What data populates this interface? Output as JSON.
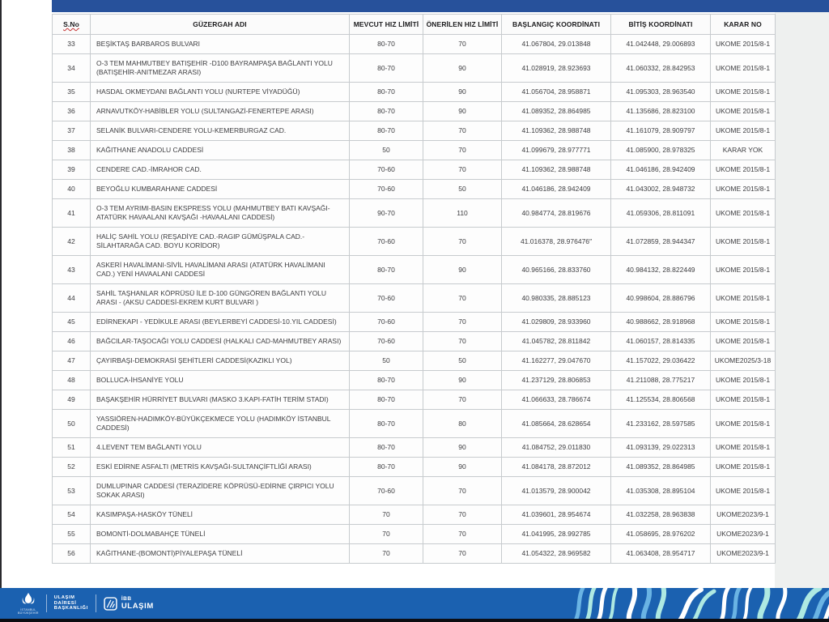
{
  "table": {
    "headers": [
      "S.No",
      "GÜZERGAH ADI",
      "MEVCUT HIZ LİMİTİ",
      "ÖNERİLEN HIZ LİMİTİ",
      "BAŞLANGIÇ KOORDİNATI",
      "BİTİŞ KOORDİNATI",
      "KARAR NO"
    ],
    "rows": [
      {
        "no": "33",
        "route": "BEŞİKTAŞ BARBAROS BULVARI",
        "current": "80-70",
        "proposed": "70",
        "start": "41.067804, 29.013848",
        "end": "41.042448, 29.006893",
        "decision": "UKOME 2015/8-1"
      },
      {
        "no": "34",
        "route": "O-3 TEM MAHMUTBEY BATIŞEHİR -D100 BAYRAMPAŞA BAĞLANTI YOLU (BATIŞEHİR-ANITMEZAR ARASI)",
        "current": "80-70",
        "proposed": "90",
        "start": "41.028919, 28.923693",
        "end": "41.060332, 28.842953",
        "decision": "UKOME 2015/8-1"
      },
      {
        "no": "35",
        "route": "HASDAL OKMEYDANI BAĞLANTI YOLU (NURTEPE VİYADÜĞÜ)",
        "current": "80-70",
        "proposed": "90",
        "start": "41.056704, 28.958871",
        "end": "41.095303, 28.963540",
        "decision": "UKOME 2015/8-1"
      },
      {
        "no": "36",
        "route": "ARNAVUTKÖY-HABİBLER YOLU (SULTANGAZİ-FENERTEPE ARASI)",
        "current": "80-70",
        "proposed": "90",
        "start": "41.089352, 28.864985",
        "end": "41.135686, 28.823100",
        "decision": "UKOME 2015/8-1"
      },
      {
        "no": "37",
        "route": "SELANİK BULVARI-CENDERE YOLU-KEMERBURGAZ CAD.",
        "current": "80-70",
        "proposed": "70",
        "start": "41.109362, 28.988748",
        "end": "41.161079, 28.909797",
        "decision": "UKOME 2015/8-1"
      },
      {
        "no": "38",
        "route": "KAĞITHANE ANADOLU CADDESİ",
        "current": "50",
        "proposed": "70",
        "start": "41.099679, 28.977771",
        "end": "41.085900, 28.978325",
        "decision": "KARAR YOK"
      },
      {
        "no": "39",
        "route": "CENDERE CAD.-İMRAHOR CAD.",
        "current": "70-60",
        "proposed": "70",
        "start": "41.109362, 28.988748",
        "end": "41.046186, 28.942409",
        "decision": "UKOME 2015/8-1"
      },
      {
        "no": "40",
        "route": "BEYOĞLU KUMBARAHANE CADDESİ",
        "current": "70-60",
        "proposed": "50",
        "start": "41.046186, 28.942409",
        "end": "41.043002, 28.948732",
        "decision": "UKOME 2015/8-1"
      },
      {
        "no": "41",
        "route": "O-3 TEM AYRIMI-BASIN EKSPRESS YOLU (MAHMUTBEY BATI KAVŞAĞI-ATATÜRK HAVAALANI KAVŞAĞI -HAVAALANI CADDESİ)",
        "current": "90-70",
        "proposed": "110",
        "start": "40.984774, 28.819676",
        "end": "41.059306, 28.811091",
        "decision": "UKOME 2015/8-1"
      },
      {
        "no": "42",
        "route": "HALİÇ SAHİL YOLU (REŞADİYE CAD.-RAGIP GÜMÜŞPALA CAD.-SİLAHTARAĞA CAD. BOYU KORİDOR)",
        "current": "70-60",
        "proposed": "70",
        "start": "41.016378, 28.976476″",
        "end": "41.072859, 28.944347",
        "decision": "UKOME 2015/8-1"
      },
      {
        "no": "43",
        "route": "ASKERİ HAVALİMANI-SİVİL HAVALİMANI ARASI (ATATÜRK HAVALİMANI CAD.) YENİ HAVAALANI CADDESİ",
        "current": "80-70",
        "proposed": "90",
        "start": "40.965166, 28.833760",
        "end": "40.984132, 28.822449",
        "decision": "UKOME 2015/8-1"
      },
      {
        "no": "44",
        "route": "SAHİL TAŞHANLAR KÖPRÜSÜ İLE D-100 GÜNGÖREN BAĞLANTI YOLU ARASI - (AKSU CADDESİ-EKREM KURT BULVARI )",
        "current": "70-60",
        "proposed": "70",
        "start": "40.980335, 28.885123",
        "end": "40.998604, 28.886796",
        "decision": "UKOME 2015/8-1"
      },
      {
        "no": "45",
        "route": "EDİRNEKAPI - YEDİKULE ARASI (BEYLERBEYİ CADDESİ-10.YIL CADDESİ)",
        "current": "70-60",
        "proposed": "70",
        "start": "41.029809, 28.933960",
        "end": "40.988662, 28.918968",
        "decision": "UKOME 2015/8-1"
      },
      {
        "no": "46",
        "route": "BAĞCILAR-TAŞOCAĞI YOLU CADDESİ (HALKALI CAD-MAHMUTBEY ARASI)",
        "current": "70-60",
        "proposed": "70",
        "start": "41.045782, 28.811842",
        "end": "41.060157, 28.814335",
        "decision": "UKOME 2015/8-1"
      },
      {
        "no": "47",
        "route": "ÇAYIRBAŞI-DEMOKRASİ ŞEHİTLERİ CADDESİ(KAZIKLI YOL)",
        "current": "50",
        "proposed": "50",
        "start": "41.162277, 29.047670",
        "end": "41.157022, 29.036422",
        "decision": "UKOME2025/3-18"
      },
      {
        "no": "48",
        "route": "BOLLUCA-İHSANİYE YOLU",
        "current": "80-70",
        "proposed": "90",
        "start": "41.237129, 28.806853",
        "end": "41.211088, 28.775217",
        "decision": "UKOME 2015/8-1"
      },
      {
        "no": "49",
        "route": "BAŞAKŞEHİR HÜRRİYET BULVARI (MASKO 3.KAPI-FATİH TERİM STADI)",
        "current": "80-70",
        "proposed": "70",
        "start": "41.066633, 28.786674",
        "end": "41.125534, 28.806568",
        "decision": "UKOME 2015/8-1"
      },
      {
        "no": "50",
        "route": "YASSIÖREN-HADIMKÖY-BÜYÜKÇEKMECE YOLU (HADIMKÖY İSTANBUL CADDESİ)",
        "current": "80-70",
        "proposed": "80",
        "start": "41.085664, 28.628654",
        "end": "41.233162, 28.597585",
        "decision": "UKOME 2015/8-1"
      },
      {
        "no": "51",
        "route": "4.LEVENT TEM BAĞLANTI YOLU",
        "current": "80-70",
        "proposed": "90",
        "start": "41.084752, 29.011830",
        "end": "41.093139, 29.022313",
        "decision": "UKOME 2015/8-1"
      },
      {
        "no": "52",
        "route": "ESKİ EDİRNE ASFALTI (METRİS KAVŞAĞI-SULTANÇİFTLİĞİ ARASI)",
        "current": "80-70",
        "proposed": "90",
        "start": "41.084178, 28.872012",
        "end": "41.089352, 28.864985",
        "decision": "UKOME 2015/8-1"
      },
      {
        "no": "53",
        "route": "DUMLUPINAR CADDESİ  (TERAZİDERE KÖPRÜSÜ-EDİRNE ÇIRPICI YOLU SOKAK ARASI)",
        "current": "70-60",
        "proposed": "70",
        "start": "41.013579, 28.900042",
        "end": "41.035308, 28.895104",
        "decision": "UKOME 2015/8-1"
      },
      {
        "no": "54",
        "route": "KASIMPAŞA-HASKÖY TÜNELİ",
        "current": "70",
        "proposed": "70",
        "start": "41.039601, 28.954674",
        "end": "41.032258, 28.963838",
        "decision": "UKOME2023/9-1"
      },
      {
        "no": "55",
        "route": "BOMONTİ-DOLMABAHÇE TÜNELİ",
        "current": "70",
        "proposed": "70",
        "start": "41.041995, 28.992785",
        "end": "41.058695, 28.976202",
        "decision": "UKOME2023/9-1"
      },
      {
        "no": "56",
        "route": "KAĞITHANE-(BOMONTİ)PİYALEPAŞA TÜNELİ",
        "current": "70",
        "proposed": "70",
        "start": "41.054322, 28.969582",
        "end": "41.063408, 28.954717",
        "decision": "UKOME2023/9-1"
      }
    ]
  },
  "footer": {
    "logo_caption_line1": "İSTANBUL",
    "logo_caption_line2": "BÜYÜKŞEHİR",
    "org_line1": "ULAŞIM",
    "org_line2": "DAİRESİ",
    "org_line3": "BAŞKANLIĞI",
    "brand_line1": "İBB",
    "brand_line2": "ULAŞIM"
  },
  "colors": {
    "top_bar": "#27519b",
    "footer_bar": "#1b61b0",
    "pattern_cyan": "#aee9e2",
    "pattern_light_blue": "#6ab4e4",
    "pattern_white": "#ffffff",
    "grid": "#c7cbce",
    "body_text": "#3d3d40",
    "spellcheck_red": "#c43030"
  }
}
